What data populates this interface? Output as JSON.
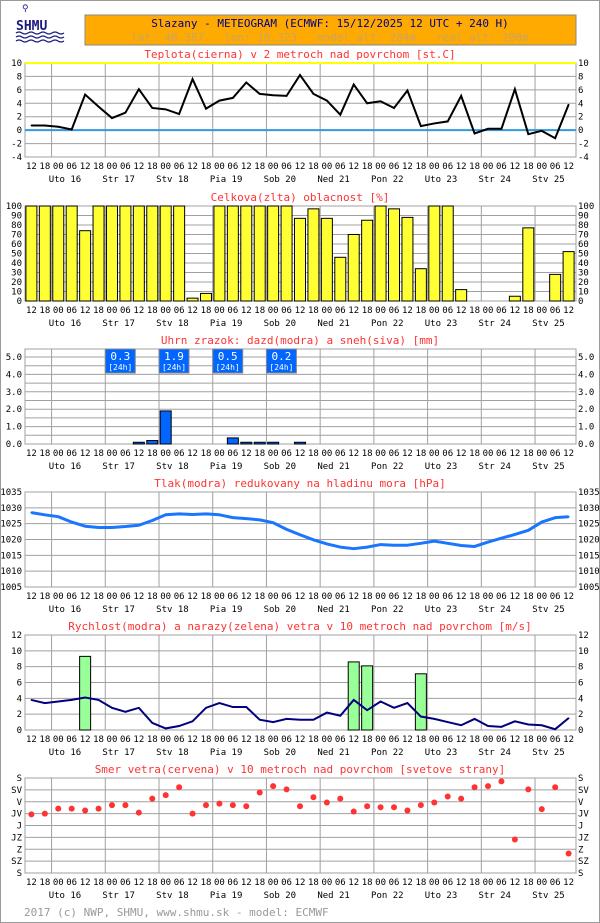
{
  "header": {
    "logo_text": "SHMU",
    "title": "Slazany - METEOGRAM (ECMWF: 15/12/2025 12 UTC + 240 H)",
    "subtitle": "lat: 48.387   lon: 18.323   model_alt: 284m   real_alt: 200m"
  },
  "time_axis": {
    "hour_labels": [
      "12",
      "18",
      "00",
      "06",
      "12",
      "18",
      "00",
      "06",
      "12",
      "18",
      "00",
      "06",
      "12",
      "18",
      "00",
      "06",
      "12",
      "18",
      "00",
      "06",
      "12",
      "18",
      "00",
      "06",
      "12",
      "18",
      "00",
      "06",
      "12",
      "18",
      "00",
      "06",
      "12",
      "18",
      "00",
      "06",
      "12",
      "18",
      "00",
      "06",
      "12"
    ],
    "day_labels": [
      "Uto 16",
      "Str 17",
      "Stv 18",
      "Pia 19",
      "Sob 20",
      "Ned 21",
      "Pon 22",
      "Uto 23",
      "Str 24",
      "Stv 25"
    ]
  },
  "colors": {
    "header_bg": "#ffaa00",
    "header_title": "#000080",
    "header_sub": "#c8a468",
    "chart_title": "#ff3333",
    "grid": "#a0a0a0",
    "temperature": "#000000",
    "zero_line": "#3399dd",
    "top_line": "#ffff00",
    "cloud": "#ffff33",
    "rain": "#0066ff",
    "pressure": "#1a75ff",
    "wind": "#000080",
    "gust": "#99ff99",
    "direction": "#ff3333"
  },
  "chart_data": [
    {
      "id": "temperature",
      "type": "line",
      "title": "Teplota(cierna) v 2 metroch nad povrchom [st.C]",
      "ylim": [
        -4,
        10
      ],
      "yticks": [
        -4,
        -2,
        0,
        2,
        4,
        6,
        8,
        10
      ],
      "ytick_labels": [
        "-4",
        "-2",
        "0",
        "2",
        "4",
        "6",
        "8",
        "10"
      ],
      "values": [
        0.7,
        0.7,
        0.5,
        0.1,
        5.3,
        3.5,
        1.8,
        2.6,
        6.1,
        3.3,
        3.1,
        2.4,
        7.6,
        3.2,
        4.4,
        4.8,
        7.1,
        5.4,
        5.2,
        5.1,
        8.2,
        5.4,
        4.4,
        2.3,
        6.8,
        4.0,
        4.3,
        3.3,
        5.9,
        0.6,
        1.0,
        1.3,
        5.1,
        -0.5,
        0.2,
        0.2,
        6.1,
        -0.6,
        -0.1,
        -1.2,
        3.8
      ]
    },
    {
      "id": "cloud",
      "type": "bar",
      "title": "Celkova(zlta) oblacnost [%]",
      "ylim": [
        0,
        100
      ],
      "yticks": [
        0,
        10,
        20,
        30,
        40,
        50,
        60,
        70,
        80,
        90,
        100
      ],
      "ytick_labels": [
        "0",
        "10",
        "20",
        "30",
        "40",
        "50",
        "60",
        "70",
        "80",
        "90",
        "100"
      ],
      "values": [
        100,
        100,
        100,
        100,
        74,
        100,
        100,
        100,
        100,
        100,
        100,
        100,
        3,
        8,
        100,
        100,
        100,
        100,
        100,
        100,
        87,
        97,
        87,
        46,
        70,
        85,
        100,
        97,
        88,
        34,
        100,
        100,
        12,
        0,
        0,
        0,
        5,
        77,
        0,
        28,
        52
      ]
    },
    {
      "id": "precipitation",
      "type": "bar",
      "title": "Uhrn zrazok: dazd(modra) a sneh(siva) [mm]",
      "ylim": [
        0,
        5
      ],
      "yticks": [
        0,
        1,
        2,
        3,
        4,
        5
      ],
      "ytick_labels": [
        "0.0",
        "1.0",
        "2.0",
        "3.0",
        "4.0",
        "5.0"
      ],
      "values": [
        0,
        0,
        0,
        0,
        0,
        0,
        0,
        0,
        0.1,
        0.2,
        1.9,
        0,
        0,
        0,
        0,
        0.35,
        0.1,
        0.1,
        0.1,
        0,
        0.1,
        0,
        0,
        0,
        0,
        0,
        0,
        0,
        0,
        0,
        0,
        0,
        0,
        0,
        0,
        0,
        0,
        0,
        0,
        0,
        0
      ],
      "daily_totals": [
        {
          "day_index": 1,
          "value": "0.3",
          "period": "[24h]"
        },
        {
          "day_index": 2,
          "value": "1.9",
          "period": "[24h]"
        },
        {
          "day_index": 3,
          "value": "0.5",
          "period": "[24h]"
        },
        {
          "day_index": 4,
          "value": "0.2",
          "period": "[24h]"
        }
      ]
    },
    {
      "id": "pressure",
      "type": "line",
      "title": "Tlak(modra) redukovany na hladinu mora [hPa]",
      "ylim": [
        1005,
        1035
      ],
      "yticks": [
        1005,
        1010,
        1015,
        1020,
        1025,
        1030,
        1035
      ],
      "ytick_labels": [
        "1005",
        "1010",
        "1015",
        "1020",
        "1025",
        "1030",
        "1035"
      ],
      "values": [
        1028.5,
        1027.8,
        1027.2,
        1025.5,
        1024.2,
        1023.8,
        1023.8,
        1024.1,
        1024.5,
        1026,
        1027.8,
        1028.1,
        1027.9,
        1028.1,
        1027.8,
        1026.9,
        1026.6,
        1026.2,
        1025.3,
        1023.2,
        1021.5,
        1019.9,
        1018.6,
        1017.6,
        1017.1,
        1017.6,
        1018.4,
        1018.2,
        1018.2,
        1018.8,
        1019.5,
        1018.8,
        1018.1,
        1017.8,
        1019.2,
        1020.4,
        1021.6,
        1022.9,
        1025.5,
        1026.9,
        1027.2
      ]
    },
    {
      "id": "wind",
      "type": "line",
      "title": "Rychlost(modra) a narazy(zelena) vetra v 10 metroch nad povrchom [m/s]",
      "ylim": [
        0,
        12
      ],
      "yticks": [
        0,
        2,
        4,
        6,
        8,
        10,
        12
      ],
      "ytick_labels": [
        "0",
        "2",
        "4",
        "6",
        "8",
        "10",
        "12"
      ],
      "series": [
        {
          "name": "speed",
          "values": [
            3.8,
            3.4,
            3.6,
            3.8,
            4.1,
            3.8,
            2.8,
            2.3,
            2.8,
            0.9,
            0.2,
            0.5,
            1.1,
            2.8,
            3.4,
            2.9,
            2.9,
            1.3,
            1.0,
            1.4,
            1.3,
            1.3,
            2.2,
            1.8,
            3.8,
            2.5,
            3.6,
            2.8,
            3.4,
            1.7,
            1.4,
            1.0,
            0.6,
            1.4,
            0.5,
            0.4,
            1.1,
            0.7,
            0.6,
            0.1,
            1.5
          ]
        },
        {
          "name": "gusts",
          "points": [
            {
              "index": 4,
              "value": 9.3
            },
            {
              "index": 24,
              "value": 8.6
            },
            {
              "index": 25,
              "value": 8.1
            },
            {
              "index": 29,
              "value": 7.1
            }
          ]
        }
      ]
    },
    {
      "id": "wind_direction",
      "type": "scatter",
      "title": "Smer vetra(cervena) v 10 metroch nad povrchom [svetove strany]",
      "ylim": [
        0,
        360
      ],
      "yticks": [
        0,
        45,
        90,
        135,
        180,
        225,
        270,
        315,
        360
      ],
      "ytick_labels": [
        "S",
        "SV",
        "V",
        "JV",
        "J",
        "JZ",
        "Z",
        "SZ",
        "S"
      ],
      "values": [
        138,
        135,
        116,
        116,
        123,
        116,
        103,
        103,
        131,
        78,
        65,
        35,
        135,
        103,
        97,
        103,
        107,
        55,
        31,
        43,
        107,
        73,
        93,
        78,
        127,
        107,
        111,
        111,
        123,
        103,
        93,
        70,
        78,
        35,
        31,
        13,
        233,
        43,
        118,
        35,
        286
      ]
    }
  ],
  "footer": {
    "text": "2017 (c) NWP, SHMU, www.shmu.sk - model: ECMWF"
  }
}
